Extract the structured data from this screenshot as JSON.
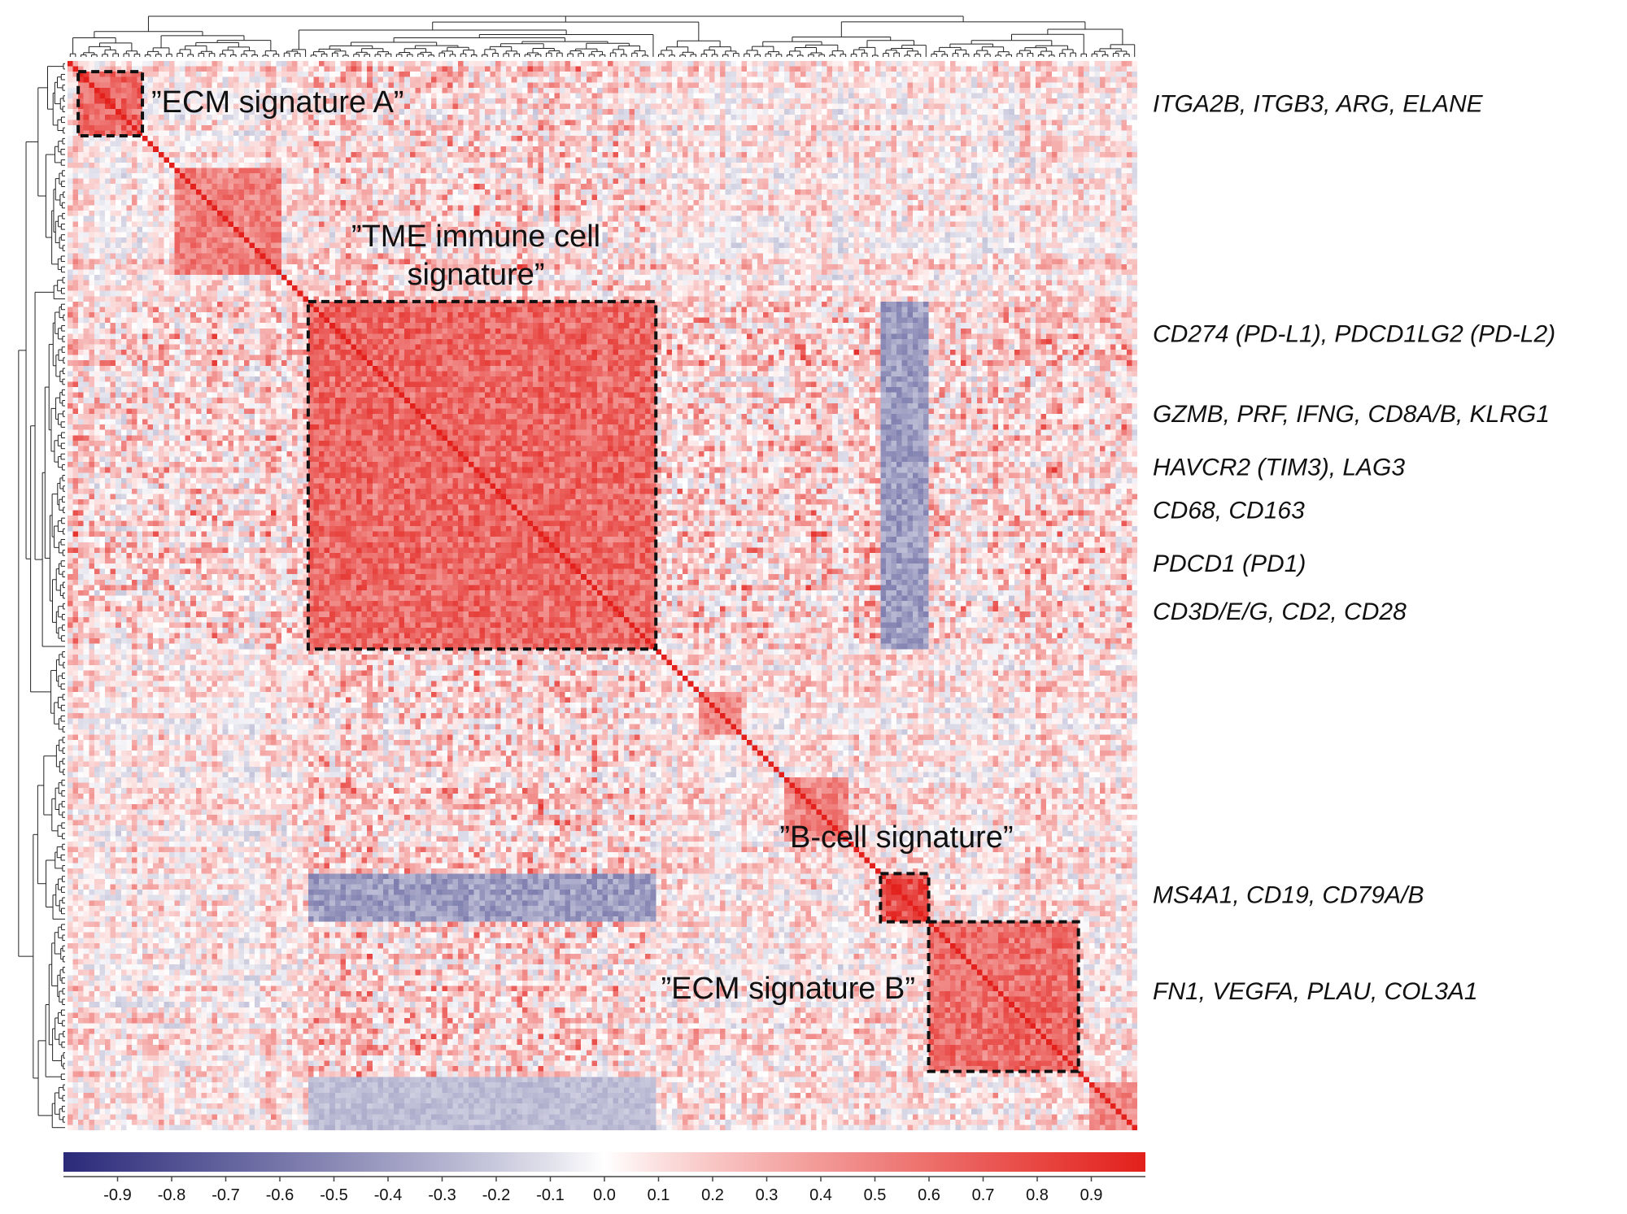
{
  "chart_data": {
    "type": "heatmap",
    "title": "",
    "description_type": "clustered gene-gene correlation matrix with hierarchical clustering dendrograms",
    "n_genes": 200,
    "colorbar": {
      "min": -1.0,
      "max": 1.0,
      "low_color": "#2b2a7a",
      "mid_color": "#ffffff",
      "high_color": "#e3201b",
      "ticks": [
        "-0.9",
        "-0.8",
        "-0.7",
        "-0.6",
        "-0.5",
        "-0.4",
        "-0.3",
        "-0.2",
        "-0.1",
        "0.0",
        "0.1",
        "0.2",
        "0.3",
        "0.4",
        "0.5",
        "0.6",
        "0.7",
        "0.8",
        "0.9"
      ],
      "tick_values": [
        -0.9,
        -0.8,
        -0.7,
        -0.6,
        -0.5,
        -0.4,
        -0.3,
        -0.2,
        -0.1,
        0.0,
        0.1,
        0.2,
        0.3,
        0.4,
        0.5,
        0.6,
        0.7,
        0.8,
        0.9
      ]
    },
    "clusters": [
      {
        "id": "ecm-a",
        "label": "”ECM signature A”",
        "gene_range": [
          2,
          14
        ],
        "strength": 0.75
      },
      {
        "id": "c2",
        "label": "",
        "gene_range": [
          20,
          40
        ],
        "strength": 0.6
      },
      {
        "id": "tme",
        "label": "”TME immune cell signature”",
        "label_lines": [
          "”TME immune cell",
          "signature”"
        ],
        "gene_range": [
          45,
          110
        ],
        "strength": 0.72
      },
      {
        "id": "c4",
        "label": "",
        "gene_range": [
          118,
          126
        ],
        "strength": 0.55
      },
      {
        "id": "c5",
        "label": "",
        "gene_range": [
          134,
          146
        ],
        "strength": 0.55
      },
      {
        "id": "bcell",
        "label": "”B-cell signature”",
        "gene_range": [
          152,
          161
        ],
        "strength": 0.85
      },
      {
        "id": "ecm-b",
        "label": "”ECM signature B”",
        "gene_range": [
          161,
          189
        ],
        "strength": 0.68
      },
      {
        "id": "c8",
        "label": "",
        "gene_range": [
          191,
          200
        ],
        "strength": 0.5
      }
    ],
    "anticorrelated_bands": [
      {
        "rows": [
          152,
          161
        ],
        "cols": [
          45,
          110
        ],
        "value": -0.4
      },
      {
        "rows": [
          45,
          110
        ],
        "cols": [
          152,
          161
        ],
        "value": -0.4
      },
      {
        "rows": [
          190,
          200
        ],
        "cols": [
          45,
          110
        ],
        "value": -0.25
      }
    ],
    "gene_annotations": [
      {
        "text": "ITGA2B, ITGB3, ARG, ELANE",
        "gene_index": 8
      },
      {
        "text": "CD274 (PD-L1), PDCD1LG2 (PD-L2)",
        "gene_index": 51
      },
      {
        "text": "GZMB, PRF, IFNG, CD8A/B, KLRG1",
        "gene_index": 66
      },
      {
        "text": "HAVCR2 (TIM3), LAG3",
        "gene_index": 76
      },
      {
        "text": "CD68, CD163",
        "gene_index": 84
      },
      {
        "text": "PDCD1 (PD1)",
        "gene_index": 94
      },
      {
        "text": "CD3D/E/G, CD2, CD28",
        "gene_index": 103
      },
      {
        "text": "MS4A1, CD19, CD79A/B",
        "gene_index": 156
      },
      {
        "text": "FN1, VEGFA, PLAU, COL3A1",
        "gene_index": 174
      }
    ]
  }
}
